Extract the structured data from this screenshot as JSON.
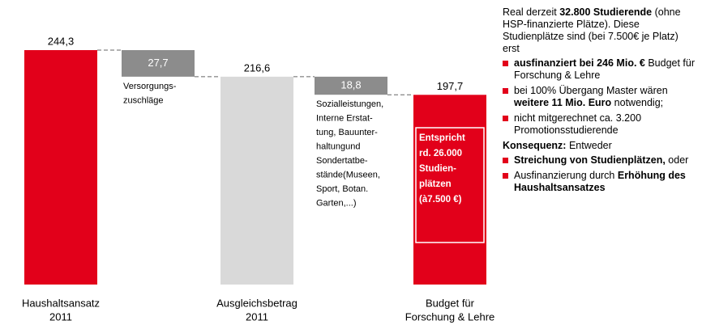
{
  "chart_data": {
    "type": "waterfall",
    "categories": [
      [
        "Haushaltsansatz",
        "2011"
      ],
      [
        "Versorgungs-",
        "zuschläge"
      ],
      [
        "Ausgleichsbetrag",
        "2011"
      ],
      [
        "Sozialleistungen,",
        "Interne Erstat-",
        "tung, Bauunter-",
        "haltungund",
        "Sondertatbe-",
        "stände(Museen,",
        "Sport, Botan.",
        "Garten,...)"
      ],
      [
        "Budget für",
        "Forschung & Lehre"
      ]
    ],
    "values": [
      244.3,
      27.7,
      216.6,
      18.8,
      197.7
    ],
    "value_labels": [
      "244,3",
      "27,7",
      "216,6",
      "18,8",
      "197,7"
    ],
    "measure": [
      "total",
      "decrease",
      "total",
      "decrease",
      "total"
    ],
    "colors": [
      "#e2001a",
      "#8c8c8c",
      "#d9d9d9",
      "#8c8c8c",
      "#e2001a"
    ],
    "annotation": [
      "Entspricht",
      "rd. 26.000",
      "Studien-",
      "plätzen",
      "(à7.500 €)"
    ]
  },
  "side": [
    {
      "bullet": false,
      "parts": [
        {
          "text": "Real derzeit ",
          "bold": false
        },
        {
          "text": "32.800 Studierende",
          "bold": true
        },
        {
          "text": " (ohne HSP-finanzierte Plätze). Diese Studienplätze sind (bei 7.500€ je Platz) erst",
          "bold": false
        }
      ]
    },
    {
      "bullet": true,
      "parts": [
        {
          "text": "ausfinanziert bei 246 Mio. €",
          "bold": true
        },
        {
          "text": " Budget für Forschung & Lehre",
          "bold": false
        }
      ]
    },
    {
      "bullet": true,
      "parts": [
        {
          "text": "bei 100% Übergang Master wären ",
          "bold": false
        },
        {
          "text": "weitere 11 Mio. Euro",
          "bold": true
        },
        {
          "text": " notwendig;",
          "bold": false
        }
      ]
    },
    {
      "bullet": true,
      "parts": [
        {
          "text": "nicht mitgerechnet ca. 3.200 Promotionsstudierende",
          "bold": false
        }
      ]
    },
    {
      "bullet": false,
      "parts": [
        {
          "text": "Konsequenz:",
          "bold": true
        },
        {
          "text": " Entweder",
          "bold": false
        }
      ]
    },
    {
      "bullet": true,
      "parts": [
        {
          "text": "Streichung von Studienplätzen,",
          "bold": true
        },
        {
          "text": " oder",
          "bold": false
        }
      ]
    },
    {
      "bullet": true,
      "parts": [
        {
          "text": "Ausfinanzierung durch ",
          "bold": false
        },
        {
          "text": "Erhöhung des Haushaltsansatzes",
          "bold": true
        }
      ]
    }
  ]
}
